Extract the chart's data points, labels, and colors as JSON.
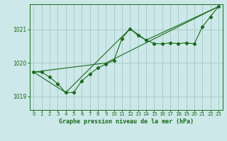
{
  "title": "Graphe pression niveau de la mer (hPa)",
  "bg_color": "#cce8e8",
  "grid_color": "#aacccc",
  "line_color": "#1a6b1a",
  "xlim": [
    -0.5,
    23.5
  ],
  "ylim": [
    1018.6,
    1021.75
  ],
  "yticks": [
    1019,
    1020,
    1021
  ],
  "xticks": [
    0,
    1,
    2,
    3,
    4,
    5,
    6,
    7,
    8,
    9,
    10,
    11,
    12,
    13,
    14,
    15,
    16,
    17,
    18,
    19,
    20,
    21,
    22,
    23
  ],
  "series1_x": [
    0,
    1,
    2,
    3,
    4,
    5,
    6,
    7,
    8,
    9,
    10,
    11,
    12,
    13,
    14,
    15,
    16,
    17,
    18,
    19,
    20,
    21,
    22,
    23
  ],
  "series1_y": [
    1019.73,
    1019.73,
    1019.58,
    1019.38,
    1019.12,
    1019.12,
    1019.47,
    1019.67,
    1019.85,
    1019.97,
    1020.08,
    1020.73,
    1021.02,
    1020.82,
    1020.68,
    1020.58,
    1020.57,
    1020.6,
    1020.58,
    1020.6,
    1020.57,
    1021.08,
    1021.38,
    1021.68
  ],
  "series2_x": [
    0,
    9,
    23
  ],
  "series2_y": [
    1019.73,
    1020.0,
    1021.68
  ],
  "series3_x": [
    0,
    4,
    12,
    14,
    23
  ],
  "series3_y": [
    1019.73,
    1019.12,
    1021.02,
    1020.68,
    1021.68
  ]
}
